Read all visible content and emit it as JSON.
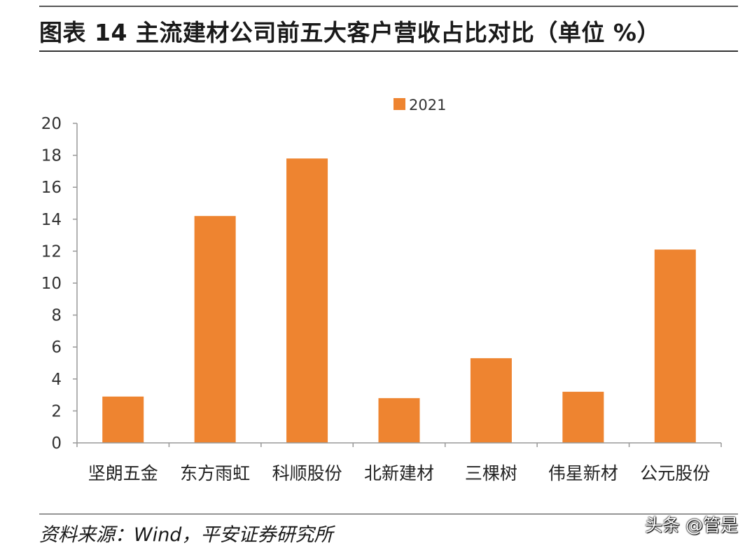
{
  "header": {
    "title": "图表 14 主流建材公司前五大客户营收占比对比（单位 %）"
  },
  "chart_data": {
    "type": "bar",
    "categories": [
      "坚朗五金",
      "东方雨虹",
      "科顺股份",
      "北新建材",
      "三棵树",
      "伟星新材",
      "公元股份"
    ],
    "series": [
      {
        "name": "2021",
        "values": [
          2.9,
          14.2,
          17.8,
          2.8,
          5.3,
          3.2,
          12.1
        ]
      }
    ],
    "yticks": [
      "0",
      "2",
      "4",
      "6",
      "8",
      "10",
      "12",
      "14",
      "16",
      "18",
      "20"
    ],
    "ylim": [
      0,
      20
    ],
    "xlabel": "",
    "ylabel": "",
    "grid": false,
    "legend_position": "top-center",
    "colors": {
      "bar": "#ee8430",
      "axis": "#999999"
    }
  },
  "footer": {
    "source": "资料来源：Wind，平安证券研究所",
    "watermark": "头条 @管是"
  }
}
